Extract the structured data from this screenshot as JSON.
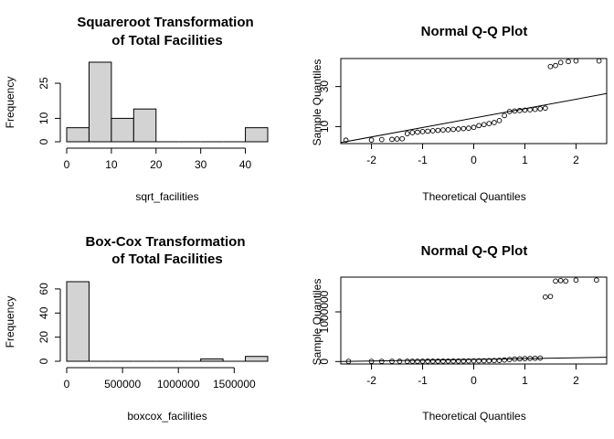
{
  "chart_data": [
    {
      "type": "bar",
      "title": [
        "Squareroot Transformation",
        "of Total Facilities"
      ],
      "xlabel": "sqrt_facilities",
      "ylabel": "Frequency",
      "bin_edges": [
        0,
        5,
        10,
        15,
        20,
        25,
        30,
        35,
        40,
        45
      ],
      "values": [
        6,
        34,
        10,
        14,
        0,
        0,
        0,
        0,
        6
      ],
      "xlim": [
        0,
        45
      ],
      "ylim": [
        0,
        34
      ],
      "xticks": [
        0,
        10,
        20,
        30,
        40
      ],
      "yticks": [
        0,
        10,
        25
      ]
    },
    {
      "type": "scatter",
      "title": [
        "Normal Q-Q Plot"
      ],
      "xlabel": "Theoretical Quantiles",
      "ylabel": "Sample Quantiles",
      "xlim": [
        -2.6,
        2.6
      ],
      "ylim": [
        1.5,
        44
      ],
      "xticks": [
        -2,
        -1,
        0,
        1,
        2
      ],
      "yticks": [
        10,
        30
      ],
      "line": [
        [
          -2.6,
          2
        ],
        [
          2.6,
          26.5
        ]
      ],
      "points": [
        [
          -2.5,
          3.2
        ],
        [
          -2.0,
          3.3
        ],
        [
          -1.8,
          3.5
        ],
        [
          -1.6,
          3.6
        ],
        [
          -1.5,
          3.8
        ],
        [
          -1.4,
          3.9
        ],
        [
          -1.3,
          6.5
        ],
        [
          -1.2,
          7.0
        ],
        [
          -1.1,
          7.2
        ],
        [
          -1.0,
          7.5
        ],
        [
          -0.9,
          7.7
        ],
        [
          -0.8,
          7.9
        ],
        [
          -0.7,
          8.1
        ],
        [
          -0.6,
          8.3
        ],
        [
          -0.5,
          8.4
        ],
        [
          -0.4,
          8.6
        ],
        [
          -0.3,
          8.8
        ],
        [
          -0.2,
          9.0
        ],
        [
          -0.1,
          9.2
        ],
        [
          0.0,
          9.6
        ],
        [
          0.1,
          10.5
        ],
        [
          0.2,
          11.0
        ],
        [
          0.3,
          11.5
        ],
        [
          0.4,
          12.0
        ],
        [
          0.5,
          13.0
        ],
        [
          0.6,
          15.5
        ],
        [
          0.7,
          17.5
        ],
        [
          0.8,
          17.8
        ],
        [
          0.9,
          18.0
        ],
        [
          1.0,
          18.2
        ],
        [
          1.1,
          18.4
        ],
        [
          1.2,
          18.6
        ],
        [
          1.3,
          18.9
        ],
        [
          1.4,
          19.2
        ],
        [
          1.5,
          40.0
        ],
        [
          1.6,
          40.5
        ],
        [
          1.7,
          42.0
        ],
        [
          1.85,
          42.5
        ],
        [
          2.0,
          42.8
        ],
        [
          2.45,
          42.8
        ]
      ]
    },
    {
      "type": "bar",
      "title": [
        "Box-Cox Transformation",
        "of Total Facilities"
      ],
      "xlabel": "boxcox_facilities",
      "ylabel": "Frequency",
      "bin_edges": [
        0,
        200000,
        400000,
        600000,
        800000,
        1000000,
        1200000,
        1400000,
        1600000,
        1800000
      ],
      "values": [
        66,
        0,
        0,
        0,
        0,
        0,
        2,
        0,
        4
      ],
      "xlim": [
        0,
        1800000
      ],
      "ylim": [
        0,
        66
      ],
      "xticks": [
        0,
        500000,
        1000000,
        1500000
      ],
      "yticks": [
        0,
        20,
        40,
        60
      ]
    },
    {
      "type": "scatter",
      "title": [
        "Normal Q-Q Plot"
      ],
      "xlabel": "Theoretical Quantiles",
      "ylabel": "Sample Quantiles",
      "xlim": [
        -2.6,
        2.6
      ],
      "ylim": [
        -50000,
        1700000
      ],
      "xticks": [
        -2,
        -1,
        0,
        1,
        2
      ],
      "yticks": [
        0,
        1000000
      ],
      "line": [
        [
          -2.6,
          0
        ],
        [
          2.6,
          85000
        ]
      ],
      "points": [
        [
          -2.45,
          3000
        ],
        [
          -2.0,
          3500
        ],
        [
          -1.8,
          4000
        ],
        [
          -1.6,
          4500
        ],
        [
          -1.45,
          5000
        ],
        [
          -1.3,
          5200
        ],
        [
          -1.2,
          5500
        ],
        [
          -1.1,
          6000
        ],
        [
          -1.0,
          6500
        ],
        [
          -0.9,
          7000
        ],
        [
          -0.8,
          7500
        ],
        [
          -0.7,
          8000
        ],
        [
          -0.6,
          8500
        ],
        [
          -0.5,
          9000
        ],
        [
          -0.4,
          9500
        ],
        [
          -0.3,
          10000
        ],
        [
          -0.2,
          11000
        ],
        [
          -0.1,
          12000
        ],
        [
          0.0,
          13000
        ],
        [
          0.1,
          14000
        ],
        [
          0.2,
          15000
        ],
        [
          0.3,
          17000
        ],
        [
          0.4,
          19000
        ],
        [
          0.5,
          22000
        ],
        [
          0.6,
          30000
        ],
        [
          0.7,
          40000
        ],
        [
          0.8,
          50000
        ],
        [
          0.9,
          55000
        ],
        [
          1.0,
          58000
        ],
        [
          1.1,
          62000
        ],
        [
          1.2,
          66000
        ],
        [
          1.3,
          70000
        ],
        [
          1.4,
          1300000
        ],
        [
          1.5,
          1310000
        ],
        [
          1.6,
          1620000
        ],
        [
          1.7,
          1630000
        ],
        [
          1.8,
          1620000
        ],
        [
          2.0,
          1640000
        ],
        [
          2.4,
          1640000
        ]
      ]
    }
  ]
}
